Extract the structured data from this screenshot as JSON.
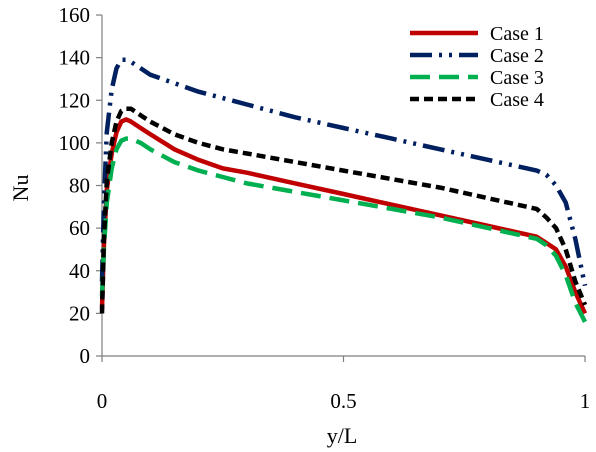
{
  "chart_data": {
    "type": "line",
    "title": "",
    "xlabel": "y/L",
    "ylabel": "Nu",
    "xlim": [
      0,
      1
    ],
    "ylim": [
      0,
      160
    ],
    "x_ticks": [
      0,
      0.5,
      1
    ],
    "x_tick_labels": [
      "0",
      "0.5",
      "1"
    ],
    "y_ticks": [
      0,
      20,
      40,
      60,
      80,
      100,
      120,
      140,
      160
    ],
    "y_tick_labels": [
      "0",
      "20",
      "40",
      "60",
      "80",
      "100",
      "120",
      "140",
      "160"
    ],
    "grid": false,
    "legend_position": "top-right",
    "series": [
      {
        "name": "Case 1",
        "color": "#C00000",
        "dash": "solid",
        "x": [
          0,
          0.004,
          0.01,
          0.02,
          0.03,
          0.04,
          0.05,
          0.06,
          0.08,
          0.1,
          0.15,
          0.2,
          0.25,
          0.3,
          0.4,
          0.5,
          0.6,
          0.7,
          0.8,
          0.9,
          0.92,
          0.94,
          0.96,
          0.98,
          1.0
        ],
        "values": [
          22,
          52,
          78,
          95,
          105,
          110,
          111,
          110,
          107,
          104,
          97,
          92,
          88,
          86,
          81,
          76,
          71,
          66,
          61,
          56,
          53,
          50,
          42,
          30,
          20
        ]
      },
      {
        "name": "Case 2",
        "color": "#002060",
        "dash": "dash-dot-dot",
        "x": [
          0,
          0.004,
          0.01,
          0.02,
          0.03,
          0.04,
          0.05,
          0.06,
          0.08,
          0.1,
          0.15,
          0.2,
          0.25,
          0.3,
          0.4,
          0.5,
          0.6,
          0.7,
          0.8,
          0.9,
          0.92,
          0.94,
          0.96,
          0.98,
          1.0
        ],
        "values": [
          35,
          72,
          105,
          125,
          135,
          139,
          139,
          138,
          135,
          132,
          128,
          124,
          121,
          118,
          112,
          107,
          102,
          97,
          92,
          87,
          85,
          80,
          72,
          55,
          33
        ]
      },
      {
        "name": "Case 3",
        "color": "#00B050",
        "dash": "long-dash",
        "x": [
          0,
          0.004,
          0.01,
          0.02,
          0.03,
          0.04,
          0.05,
          0.06,
          0.08,
          0.1,
          0.15,
          0.2,
          0.25,
          0.3,
          0.4,
          0.5,
          0.6,
          0.7,
          0.8,
          0.9,
          0.92,
          0.94,
          0.96,
          0.98,
          1.0
        ],
        "values": [
          28,
          50,
          72,
          88,
          97,
          101,
          102,
          102,
          100,
          97,
          91,
          87,
          84,
          81,
          77,
          73,
          69,
          65,
          60,
          55,
          52,
          47,
          38,
          25,
          16
        ]
      },
      {
        "name": "Case 4",
        "color": "#000000",
        "dash": "short-dash",
        "x": [
          0,
          0.004,
          0.01,
          0.02,
          0.03,
          0.04,
          0.05,
          0.06,
          0.08,
          0.1,
          0.15,
          0.2,
          0.25,
          0.3,
          0.4,
          0.5,
          0.6,
          0.7,
          0.8,
          0.9,
          0.92,
          0.94,
          0.96,
          0.98,
          1.0
        ],
        "values": [
          20,
          55,
          82,
          100,
          110,
          115,
          116,
          116,
          113,
          110,
          104,
          100,
          97,
          95,
          91,
          87,
          83,
          79,
          74,
          69,
          65,
          60,
          50,
          35,
          24
        ]
      }
    ]
  }
}
